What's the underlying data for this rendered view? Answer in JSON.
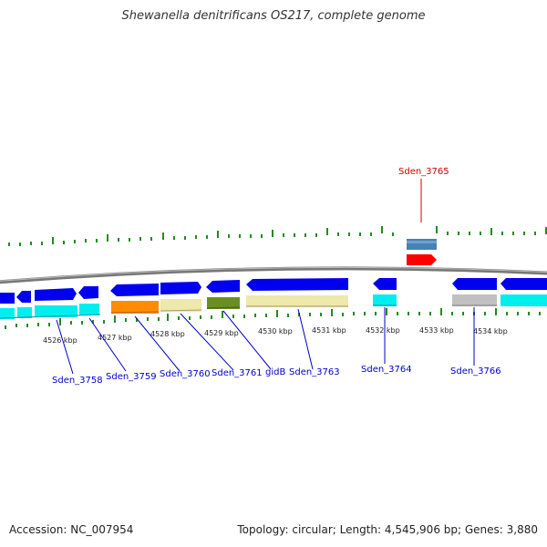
{
  "title": "Shewanella denitrificans OS217, complete genome",
  "footer": {
    "accession": "Accession: NC_007954",
    "topology": "Topology: circular; Length: 4,545,906 bp; Genes: 3,880"
  },
  "colors": {
    "backbone": "#888888",
    "gene_forward": "#0000ee",
    "cds_reverse": "#00eeee",
    "highlight": "#ff0000",
    "label": "#0000cc",
    "tick": "#228B22"
  },
  "kbp_labels": [
    "4526 kbp",
    "4527 kbp",
    "4528 kbp",
    "4529 kbp",
    "4530 kbp",
    "4531 kbp",
    "4532 kbp",
    "4533 kbp",
    "4534 kbp"
  ],
  "gene_labels": [
    {
      "text": "Sden_3758",
      "color": "#0000cc"
    },
    {
      "text": "Sden_3759",
      "color": "#0000cc"
    },
    {
      "text": "Sden_3760",
      "color": "#0000cc"
    },
    {
      "text": "Sden_3761",
      "color": "#0000cc"
    },
    {
      "text": "gidB",
      "color": "#0000cc"
    },
    {
      "text": "Sden_3763",
      "color": "#0000cc"
    },
    {
      "text": "Sden_3764",
      "color": "#0000cc"
    },
    {
      "text": "Sden_3766",
      "color": "#0000cc"
    },
    {
      "text": "Sden_3765",
      "color": "#cc0000"
    }
  ]
}
